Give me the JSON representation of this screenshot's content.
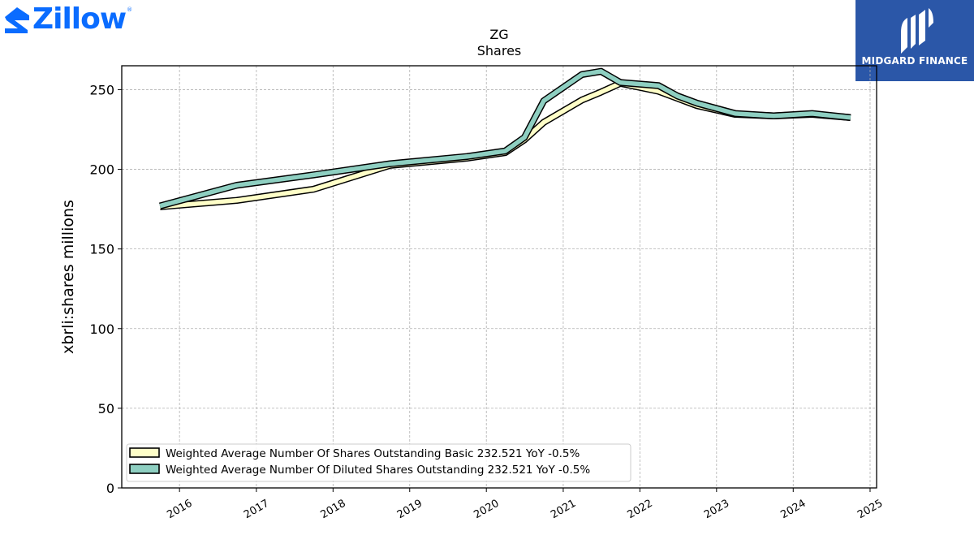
{
  "header": {
    "logo_text": "Zillow",
    "logo_reg": "®",
    "logo_icon": "zillow-house-icon",
    "brand_icon": "midgard-pillars-icon",
    "brand_text": "MIDGARD FINANCE",
    "brand_color": "#2b57a8",
    "logo_color": "#0a6cff"
  },
  "chart_data": {
    "type": "line",
    "title": "ZG",
    "subtitle": "Shares",
    "ylabel": "xbrli:shares millions",
    "xlabel": "",
    "ylim": [
      0,
      265
    ],
    "xlim": [
      "2015-04-01",
      "2025-02-01"
    ],
    "yticks": [
      0,
      50,
      100,
      150,
      200,
      250
    ],
    "xticks": [
      "2016",
      "2017",
      "2018",
      "2019",
      "2020",
      "2021",
      "2022",
      "2023",
      "2024",
      "2025"
    ],
    "grid": true,
    "legend_position": "lower-left",
    "series": [
      {
        "name": "Weighted Average Number Of Shares Outstanding Basic  232.521 YoY -0.5%",
        "color": "#ffffc8",
        "x": [
          "2015-09-30",
          "2016-09-30",
          "2017-09-30",
          "2018-09-30",
          "2019-09-30",
          "2020-03-31",
          "2020-06-30",
          "2020-09-30",
          "2021-03-31",
          "2021-06-30",
          "2021-09-30",
          "2022-03-31",
          "2022-06-30",
          "2022-09-30",
          "2023-03-31",
          "2023-09-30",
          "2024-03-31",
          "2024-09-30"
        ],
        "values": [
          176.5,
          180.5,
          187.5,
          202.5,
          207,
          210.5,
          218.5,
          229.5,
          243.5,
          248.5,
          254,
          249,
          244.5,
          240,
          234.5,
          233.5,
          234.5,
          232.5
        ]
      },
      {
        "name": "Weighted Average Number Of Diluted Shares Outstanding  232.521 YoY -0.5%",
        "color": "#8ecfc1",
        "x": [
          "2015-09-30",
          "2016-09-30",
          "2017-09-30",
          "2018-09-30",
          "2019-09-30",
          "2020-03-31",
          "2020-06-30",
          "2020-09-30",
          "2021-03-31",
          "2021-06-30",
          "2021-09-30",
          "2022-03-31",
          "2022-06-30",
          "2022-09-30",
          "2023-03-31",
          "2023-09-30",
          "2024-03-31",
          "2024-09-30"
        ],
        "values": [
          177,
          190,
          196.5,
          203.5,
          208,
          211.5,
          220,
          243,
          259.5,
          261.5,
          254.5,
          252.5,
          246,
          241.5,
          235,
          233.5,
          235,
          232.5
        ]
      }
    ]
  }
}
